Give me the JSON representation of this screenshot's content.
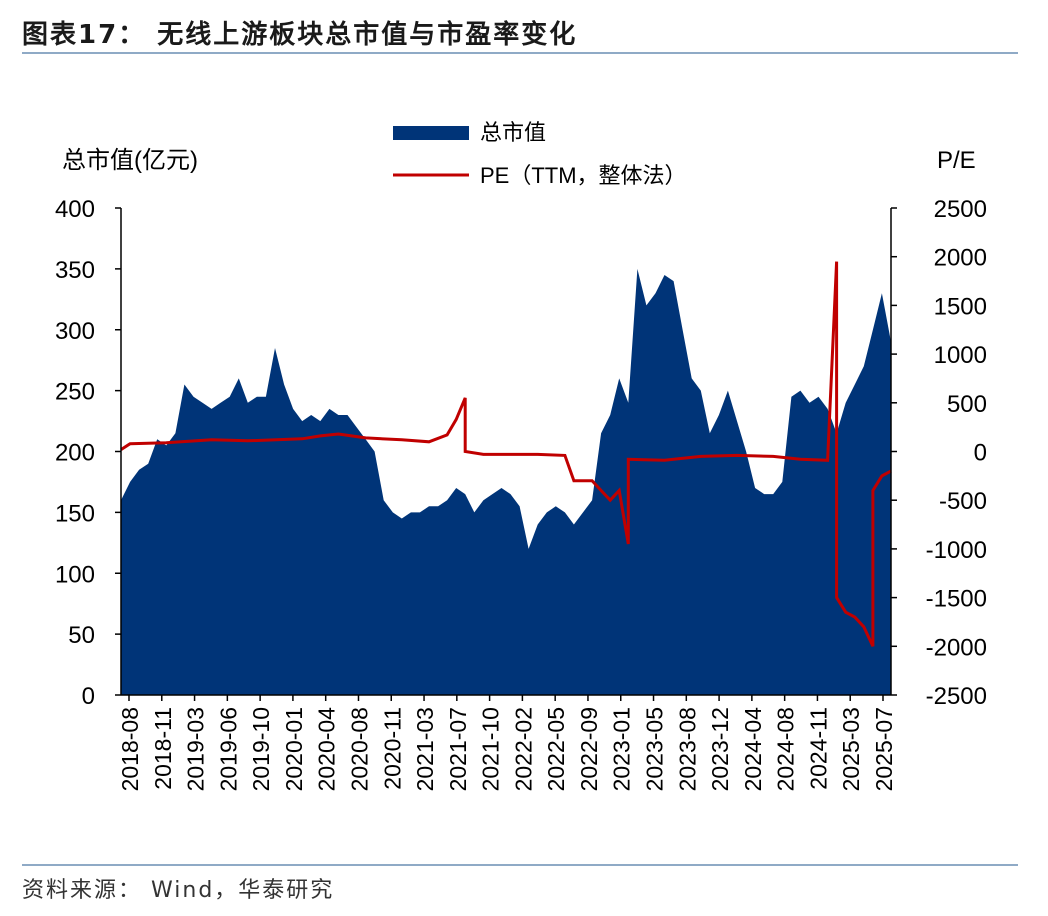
{
  "header": {
    "title": "图表17：  无线上游板块总市值与市盈率变化"
  },
  "footer": {
    "source": "资料来源：  Wind，华泰研究"
  },
  "chart_data": {
    "type": "area+line (dual-axis)",
    "title": "无线上游板块总市值与市盈率变化",
    "y_left_label": "总市值(亿元)",
    "y_right_label": "P/E",
    "ylim_left": [
      0,
      400
    ],
    "ylim_right": [
      -2500,
      2500
    ],
    "y_left_ticks": [
      0,
      50,
      100,
      150,
      200,
      250,
      300,
      350,
      400
    ],
    "y_right_ticks": [
      -2500,
      -2000,
      -1500,
      -1000,
      -500,
      0,
      500,
      1000,
      1500,
      2000,
      2500
    ],
    "x_range": [
      "2018-08",
      "2025-09"
    ],
    "x_tick_labels": [
      "2018-08",
      "2018-11",
      "2019-03",
      "2019-06",
      "2019-10",
      "2020-01",
      "2020-04",
      "2020-08",
      "2020-11",
      "2021-03",
      "2021-07",
      "2021-10",
      "2022-02",
      "2022-05",
      "2022-09",
      "2023-01",
      "2023-05",
      "2023-08",
      "2023-12",
      "2024-04",
      "2024-08",
      "2024-11",
      "2025-03",
      "2025-07"
    ],
    "legend": {
      "placement": "top-center"
    },
    "series": [
      {
        "name": "总市值",
        "type": "area",
        "color": "#003478",
        "axis": "left",
        "x": [
          "2018-08",
          "2018-09",
          "2018-10",
          "2018-11",
          "2018-12",
          "2019-01",
          "2019-02",
          "2019-03",
          "2019-04",
          "2019-05",
          "2019-06",
          "2019-07",
          "2019-08",
          "2019-09",
          "2019-10",
          "2019-11",
          "2019-12",
          "2020-01",
          "2020-02",
          "2020-03",
          "2020-04",
          "2020-05",
          "2020-06",
          "2020-07",
          "2020-08",
          "2020-09",
          "2020-10",
          "2020-11",
          "2020-12",
          "2021-01",
          "2021-02",
          "2021-03",
          "2021-04",
          "2021-05",
          "2021-06",
          "2021-07",
          "2021-08",
          "2021-09",
          "2021-10",
          "2021-11",
          "2021-12",
          "2022-01",
          "2022-02",
          "2022-03",
          "2022-04",
          "2022-05",
          "2022-06",
          "2022-07",
          "2022-08",
          "2022-09",
          "2022-10",
          "2022-11",
          "2022-12",
          "2023-01",
          "2023-02",
          "2023-03",
          "2023-04",
          "2023-05",
          "2023-06",
          "2023-07",
          "2023-08",
          "2023-09",
          "2023-10",
          "2023-11",
          "2023-12",
          "2024-01",
          "2024-02",
          "2024-03",
          "2024-04",
          "2024-05",
          "2024-06",
          "2024-07",
          "2024-08",
          "2024-09",
          "2024-10",
          "2024-11",
          "2024-12",
          "2025-01",
          "2025-02",
          "2025-03",
          "2025-04",
          "2025-05",
          "2025-06",
          "2025-07",
          "2025-08",
          "2025-09"
        ],
        "values": [
          160,
          175,
          185,
          190,
          210,
          205,
          215,
          255,
          245,
          240,
          235,
          240,
          245,
          260,
          240,
          245,
          245,
          285,
          255,
          235,
          225,
          230,
          225,
          235,
          230,
          230,
          220,
          210,
          200,
          160,
          150,
          145,
          150,
          150,
          155,
          155,
          160,
          170,
          165,
          150,
          160,
          165,
          170,
          165,
          155,
          120,
          140,
          150,
          155,
          150,
          140,
          150,
          160,
          215,
          230,
          260,
          240,
          350,
          320,
          330,
          345,
          340,
          300,
          260,
          250,
          215,
          230,
          250,
          225,
          200,
          170,
          165,
          165,
          175,
          245,
          250,
          240,
          245,
          235,
          215,
          240,
          255,
          270,
          300,
          330,
          290
        ]
      },
      {
        "name": "PE（TTM，整体法）",
        "type": "line",
        "color": "#c00000",
        "axis": "right",
        "points": [
          [
            "2018-08",
            20
          ],
          [
            "2018-09",
            80
          ],
          [
            "2019-01",
            90
          ],
          [
            "2019-06",
            120
          ],
          [
            "2019-10",
            110
          ],
          [
            "2020-04",
            130
          ],
          [
            "2020-06",
            160
          ],
          [
            "2020-08",
            180
          ],
          [
            "2020-11",
            140
          ],
          [
            "2021-03",
            120
          ],
          [
            "2021-06",
            100
          ],
          [
            "2021-08",
            170
          ],
          [
            "2021-09",
            330
          ],
          [
            "2021-10",
            550
          ],
          [
            "2021-10",
            0
          ],
          [
            "2021-12",
            -30
          ],
          [
            "2022-06",
            -30
          ],
          [
            "2022-09",
            -40
          ],
          [
            "2022-10",
            -300
          ],
          [
            "2022-12",
            -300
          ],
          [
            "2023-01",
            -400
          ],
          [
            "2023-02",
            -500
          ],
          [
            "2023-03",
            -400
          ],
          [
            "2023-04",
            -950
          ],
          [
            "2023-04",
            -80
          ],
          [
            "2023-08",
            -90
          ],
          [
            "2023-12",
            -50
          ],
          [
            "2024-04",
            -40
          ],
          [
            "2024-08",
            -50
          ],
          [
            "2024-11",
            -80
          ],
          [
            "2025-02",
            -90
          ],
          [
            "2025-03",
            1950
          ],
          [
            "2025-03",
            -1500
          ],
          [
            "2025-04",
            -1650
          ],
          [
            "2025-05",
            -1700
          ],
          [
            "2025-06",
            -1800
          ],
          [
            "2025-07",
            -2000
          ],
          [
            "2025-07",
            -400
          ],
          [
            "2025-08",
            -250
          ],
          [
            "2025-09",
            -200
          ]
        ]
      }
    ]
  }
}
